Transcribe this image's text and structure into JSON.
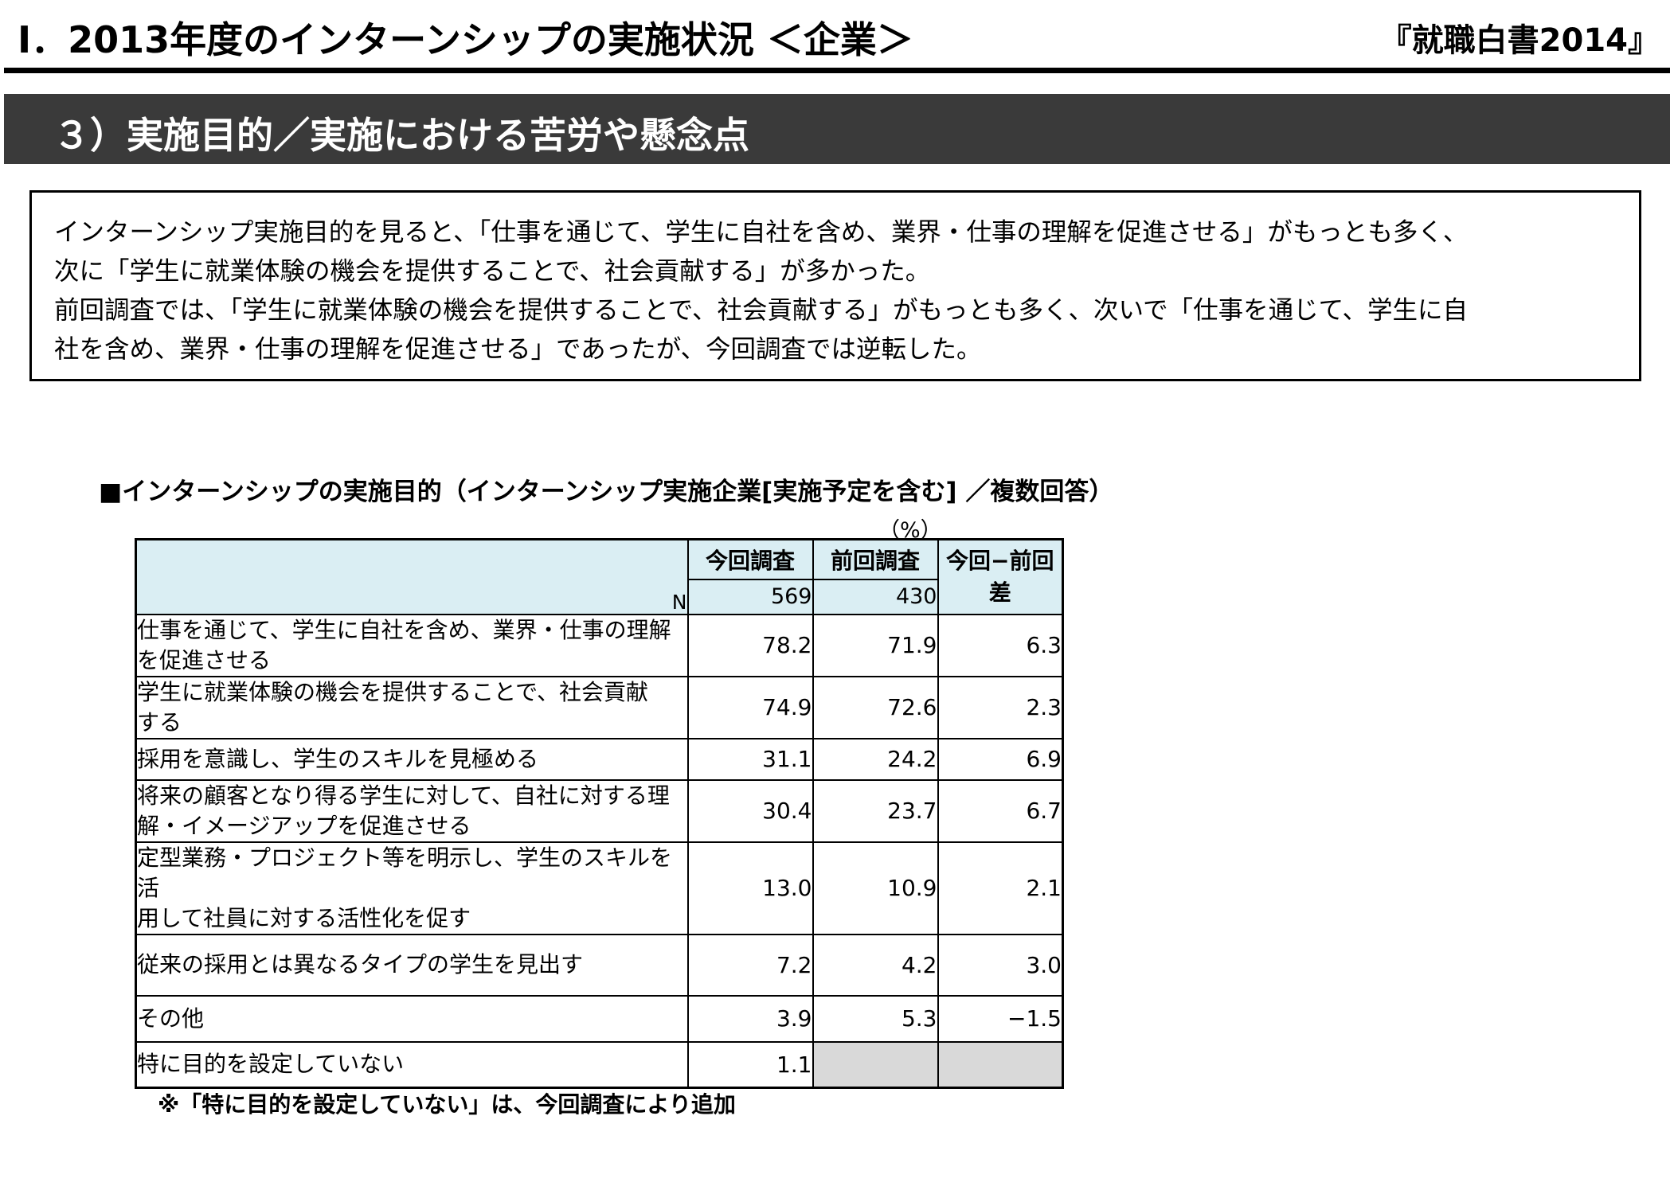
{
  "header": {
    "title": "Ⅰ．2013年度のインターンシップの実施状況 ＜企業＞",
    "source": "『就職白書2014』"
  },
  "section": {
    "title": "３）実施目的／実施における苦労や懸念点"
  },
  "summary": {
    "lines": [
      "インターンシップ実施目的を見ると、「仕事を通じて、学生に自社を含め、業界・仕事の理解を促進させる」がもっとも多く、",
      "次に「学生に就業体験の機会を提供することで、社会貢献する」が多かった。",
      "前回調査では、「学生に就業体験の機会を提供することで、社会貢献する」がもっとも多く、次いで「仕事を通じて、学生に自",
      "社を含め、業界・仕事の理解を促進させる」であったが、今回調査では逆転した。"
    ]
  },
  "table": {
    "caption": "■インターンシップの実施目的（インターンシップ実施企業[実施予定を含む] ／複数回答）",
    "unit": "（%）",
    "columns": {
      "current": "今回調査",
      "previous": "前回調査",
      "diff_line1": "今回−前回",
      "diff_line2": "差"
    },
    "n_label": "N",
    "n_current": "569",
    "n_previous": "430",
    "rows": [
      {
        "label1": "仕事を通じて、学生に自社を含め、業界・仕事の理解",
        "label2": "を促進させる",
        "current": "78.2",
        "previous": "71.9",
        "diff": "6.3"
      },
      {
        "label1": "学生に就業体験の機会を提供することで、社会貢献",
        "label2": "する",
        "current": "74.9",
        "previous": "72.6",
        "diff": "2.3"
      },
      {
        "label1": "採用を意識し、学生のスキルを見極める",
        "label2": "",
        "current": "31.1",
        "previous": "24.2",
        "diff": "6.9"
      },
      {
        "label1": "将来の顧客となり得る学生に対して、自社に対する理",
        "label2": "解・イメージアップを促進させる",
        "current": "30.4",
        "previous": "23.7",
        "diff": "6.7"
      },
      {
        "label1": "定型業務・プロジェクト等を明示し、学生のスキルを活",
        "label2": "用して社員に対する活性化を促す",
        "current": "13.0",
        "previous": "10.9",
        "diff": "2.1"
      },
      {
        "label1": "従来の採用とは異なるタイプの学生を見出す",
        "label2": "",
        "current": "7.2",
        "previous": "4.2",
        "diff": "3.0"
      },
      {
        "label1": "その他",
        "label2": "",
        "current": "3.9",
        "previous": "5.3",
        "diff": "−1.5"
      },
      {
        "label1": "特に目的を設定していない",
        "label2": "",
        "current": "1.1",
        "previous": "",
        "diff": ""
      }
    ]
  },
  "note": "※「特に目的を設定していない」は、今回調査により追加",
  "colors": {
    "header_fill": "#daeef3",
    "section_bar": "#3a3a3a",
    "empty_cell": "#d9d9d9"
  }
}
